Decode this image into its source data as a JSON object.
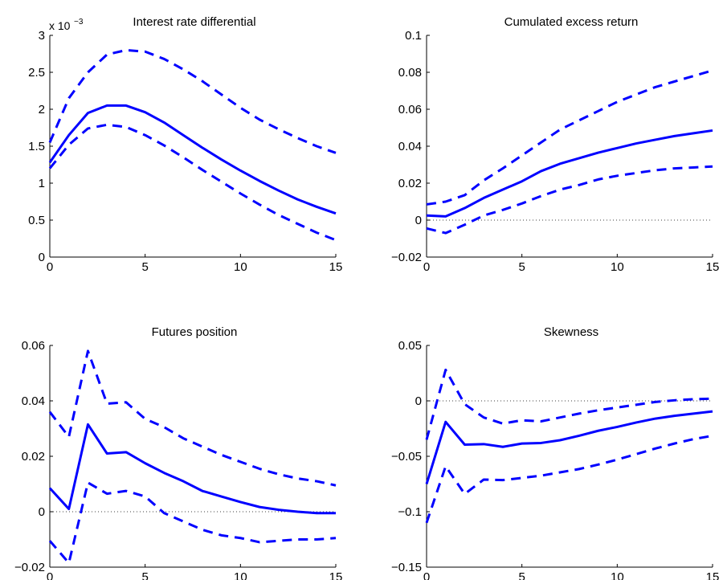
{
  "chart_data": [
    {
      "type": "line",
      "title": "Interest rate differential",
      "xlabel": "",
      "ylabel": "",
      "scale_label": "x 10",
      "scale_exponent": "−3",
      "xlim": [
        0,
        15
      ],
      "ylim": [
        0,
        3
      ],
      "xticks": [
        0,
        5,
        10,
        15
      ],
      "xtick_labels": [
        "0",
        "5",
        "10",
        "15"
      ],
      "yticks": [
        0,
        0.5,
        1,
        1.5,
        2,
        2.5,
        3
      ],
      "ytick_labels": [
        "0",
        "0.5",
        "1",
        "1.5",
        "2",
        "2.5",
        "3"
      ],
      "zero_line": false,
      "x": [
        0,
        1,
        2,
        3,
        4,
        5,
        6,
        7,
        8,
        9,
        10,
        11,
        12,
        13,
        14,
        15
      ],
      "series": [
        {
          "style": "dashed",
          "values": [
            1.55,
            2.15,
            2.5,
            2.74,
            2.8,
            2.78,
            2.68,
            2.54,
            2.38,
            2.2,
            2.02,
            1.86,
            1.73,
            1.61,
            1.5,
            1.41
          ]
        },
        {
          "style": "solid",
          "values": [
            1.28,
            1.65,
            1.95,
            2.05,
            2.05,
            1.96,
            1.82,
            1.65,
            1.48,
            1.32,
            1.17,
            1.03,
            0.9,
            0.78,
            0.68,
            0.59
          ]
        },
        {
          "style": "dashed",
          "values": [
            1.2,
            1.52,
            1.74,
            1.79,
            1.76,
            1.65,
            1.51,
            1.35,
            1.18,
            1.02,
            0.86,
            0.71,
            0.57,
            0.45,
            0.33,
            0.23
          ]
        }
      ],
      "color": "#0000ff"
    },
    {
      "type": "line",
      "title": "Cumulated excess return",
      "xlabel": "",
      "ylabel": "",
      "xlim": [
        0,
        15
      ],
      "ylim": [
        -0.02,
        0.1
      ],
      "xticks": [
        0,
        5,
        10,
        15
      ],
      "xtick_labels": [
        "0",
        "5",
        "10",
        "15"
      ],
      "yticks": [
        -0.02,
        0,
        0.02,
        0.04,
        0.06,
        0.08,
        0.1
      ],
      "ytick_labels": [
        "−0.02",
        "0",
        "0.02",
        "0.04",
        "0.06",
        "0.08",
        "0.1"
      ],
      "zero_line": true,
      "x": [
        0,
        1,
        2,
        3,
        4,
        5,
        6,
        7,
        8,
        9,
        10,
        11,
        12,
        13,
        14,
        15
      ],
      "series": [
        {
          "style": "dashed",
          "values": [
            0.0085,
            0.01,
            0.0135,
            0.0215,
            0.028,
            0.035,
            0.042,
            0.049,
            0.054,
            0.059,
            0.064,
            0.068,
            0.072,
            0.075,
            0.078,
            0.081
          ]
        },
        {
          "style": "solid",
          "values": [
            0.0025,
            0.002,
            0.0065,
            0.012,
            0.0165,
            0.021,
            0.0265,
            0.0305,
            0.0335,
            0.0365,
            0.039,
            0.0415,
            0.0435,
            0.0455,
            0.047,
            0.0485
          ]
        },
        {
          "style": "dashed",
          "values": [
            -0.0045,
            -0.007,
            -0.0025,
            0.0025,
            0.0055,
            0.009,
            0.013,
            0.0165,
            0.019,
            0.022,
            0.024,
            0.0255,
            0.027,
            0.028,
            0.0285,
            0.029
          ]
        }
      ],
      "color": "#0000ff"
    },
    {
      "type": "line",
      "title": "Futures position",
      "xlabel": "",
      "ylabel": "",
      "xlim": [
        0,
        15
      ],
      "ylim": [
        -0.02,
        0.06
      ],
      "xticks": [
        0,
        5,
        10,
        15
      ],
      "xtick_labels": [
        "0",
        "5",
        "10",
        "15"
      ],
      "yticks": [
        -0.02,
        0,
        0.02,
        0.04,
        0.06
      ],
      "ytick_labels": [
        "−0.02",
        "0",
        "0.02",
        "0.04",
        "0.06"
      ],
      "zero_line": true,
      "x": [
        0,
        1,
        2,
        3,
        4,
        5,
        6,
        7,
        8,
        9,
        10,
        11,
        12,
        13,
        14,
        15
      ],
      "series": [
        {
          "style": "dashed",
          "values": [
            0.036,
            0.027,
            0.058,
            0.039,
            0.0395,
            0.0335,
            0.0305,
            0.0265,
            0.0235,
            0.0205,
            0.018,
            0.0155,
            0.0135,
            0.012,
            0.011,
            0.0095
          ]
        },
        {
          "style": "solid",
          "values": [
            0.0085,
            0.001,
            0.0315,
            0.021,
            0.0215,
            0.0175,
            0.014,
            0.011,
            0.0075,
            0.0055,
            0.0035,
            0.0017,
            0.0007,
            0,
            -0.0005,
            -0.0005
          ]
        },
        {
          "style": "dashed",
          "values": [
            -0.0105,
            -0.0185,
            0.0105,
            0.0065,
            0.0075,
            0.0055,
            -0.0005,
            -0.0035,
            -0.0065,
            -0.0085,
            -0.0095,
            -0.011,
            -0.0105,
            -0.01,
            -0.01,
            -0.0095
          ]
        }
      ],
      "color": "#0000ff"
    },
    {
      "type": "line",
      "title": "Skewness",
      "xlabel": "",
      "ylabel": "",
      "xlim": [
        0,
        15
      ],
      "ylim": [
        -0.15,
        0.05
      ],
      "xticks": [
        0,
        5,
        10,
        15
      ],
      "xtick_labels": [
        "0",
        "5",
        "10",
        "15"
      ],
      "yticks": [
        -0.15,
        -0.1,
        -0.05,
        0,
        0.05
      ],
      "ytick_labels": [
        "−0.15",
        "−0.1",
        "−0.05",
        "0",
        "0.05"
      ],
      "zero_line": true,
      "x": [
        0,
        1,
        2,
        3,
        4,
        5,
        6,
        7,
        8,
        9,
        10,
        11,
        12,
        13,
        14,
        15
      ],
      "series": [
        {
          "style": "dashed",
          "values": [
            -0.035,
            0.028,
            -0.003,
            -0.015,
            -0.0205,
            -0.0175,
            -0.0185,
            -0.015,
            -0.0115,
            -0.0085,
            -0.006,
            -0.0035,
            -0.001,
            0.0005,
            0.0015,
            0.002
          ]
        },
        {
          "style": "solid",
          "values": [
            -0.075,
            -0.019,
            -0.0395,
            -0.039,
            -0.0415,
            -0.0385,
            -0.038,
            -0.0355,
            -0.0315,
            -0.027,
            -0.0235,
            -0.0195,
            -0.016,
            -0.0135,
            -0.0115,
            -0.0095
          ]
        },
        {
          "style": "dashed",
          "values": [
            -0.11,
            -0.059,
            -0.084,
            -0.071,
            -0.0715,
            -0.0695,
            -0.0675,
            -0.0645,
            -0.0615,
            -0.0575,
            -0.053,
            -0.048,
            -0.043,
            -0.0385,
            -0.0345,
            -0.0315
          ]
        }
      ],
      "color": "#0000ff"
    }
  ]
}
